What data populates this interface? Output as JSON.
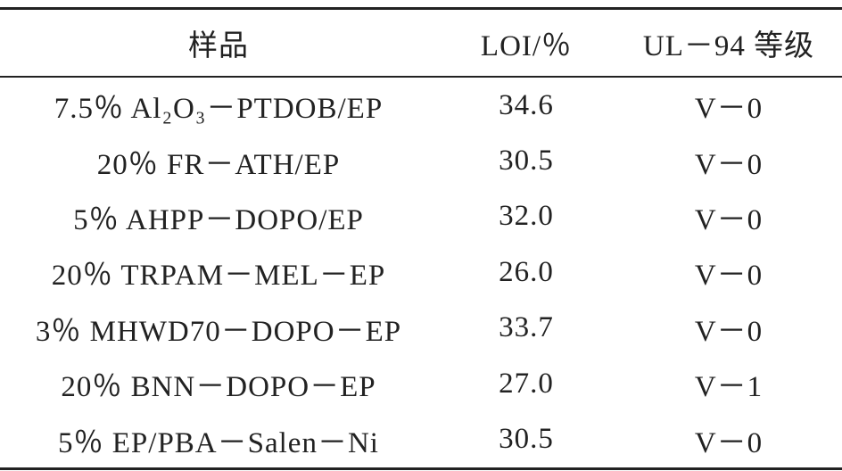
{
  "table": {
    "header": [
      "样品",
      "LOI/％",
      "UL－94 等级"
    ],
    "rows": [
      [
        "7.5％ Al₂O₃－PTDOB/EP",
        "34.6",
        "V－0"
      ],
      [
        "20％ FR－ATH/EP",
        "30.5",
        "V－0"
      ],
      [
        "5％ AHPP－DOPO/EP",
        "32.0",
        "V－0"
      ],
      [
        "20％ TRPAM－MEL－EP",
        "26.0",
        "V－0"
      ],
      [
        "3％ MHWD70－DOPO－EP",
        "33.7",
        "V－0"
      ],
      [
        "20％ BNN－DOPO－EP",
        "27.0",
        "V－1"
      ],
      [
        "5％ EP/PBA－Salen－Ni",
        "30.5",
        "V－0"
      ]
    ]
  }
}
